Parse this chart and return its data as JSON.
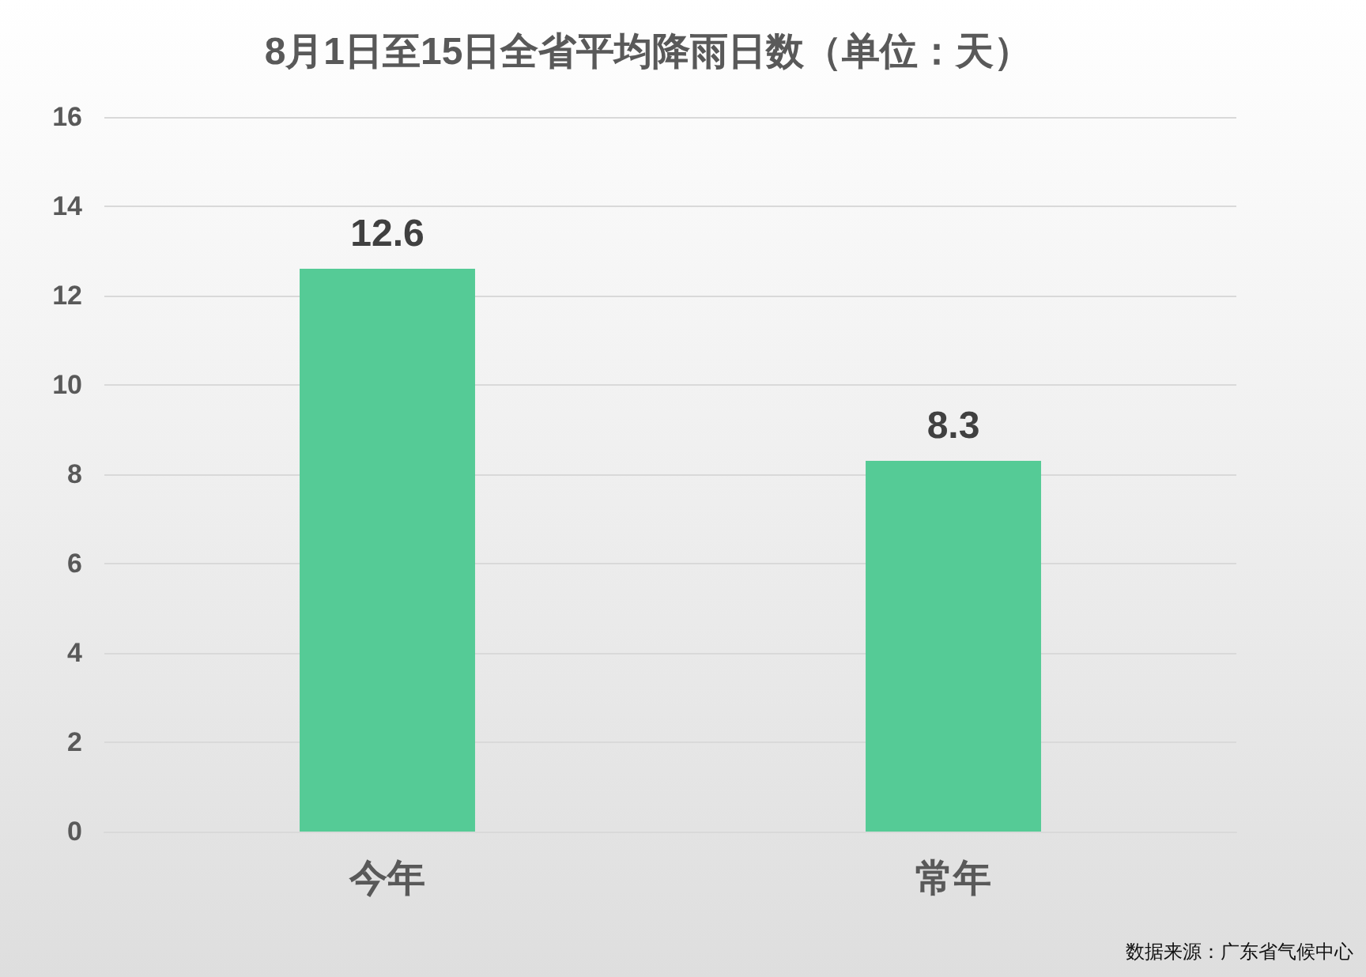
{
  "chart_data": {
    "type": "bar",
    "title": "8月1日至15日全省平均降雨日数（单位：天）",
    "categories": [
      "今年",
      "常年"
    ],
    "values": [
      12.6,
      8.3
    ],
    "color": "#55cb96",
    "ylim": [
      0,
      16
    ],
    "yticks": [
      0,
      2,
      4,
      6,
      8,
      10,
      12,
      14,
      16
    ],
    "grid": "y",
    "data_labels": true,
    "annotations": [
      "数据来源：广东省气候中心"
    ]
  }
}
